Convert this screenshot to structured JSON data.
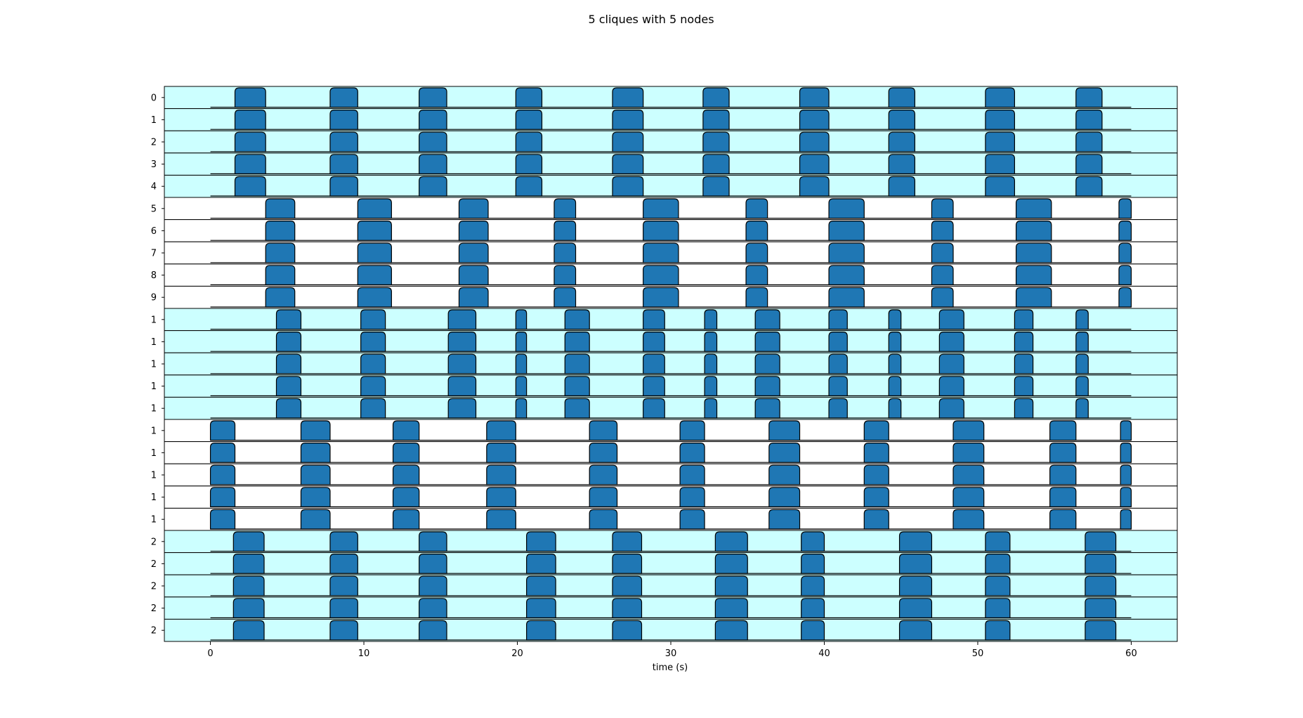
{
  "chart_data": {
    "type": "area",
    "title": "5 cliques with 5 nodes",
    "xlabel": "time (s)",
    "ylabel": "",
    "xlim": [
      -3,
      63
    ],
    "x_ticks": [
      0,
      10,
      20,
      30,
      40,
      50,
      60
    ],
    "x_tick_labels": [
      "0",
      "10",
      "20",
      "30",
      "40",
      "50",
      "60"
    ],
    "grid": false,
    "colors": {
      "fill": "#1f77b4",
      "edge": "#000000",
      "band_shaded": "#ccffff",
      "band_plain": "#ffffff"
    },
    "row_labels": [
      "0",
      "1",
      "2",
      "3",
      "4",
      "5",
      "6",
      "7",
      "8",
      "9",
      "1",
      "1",
      "1",
      "1",
      "1",
      "1",
      "1",
      "1",
      "1",
      "1",
      "2",
      "2",
      "2",
      "2",
      "2"
    ],
    "cliques": [
      {
        "shaded": true,
        "bursts": [
          [
            1.6,
            3.6
          ],
          [
            7.8,
            9.6
          ],
          [
            13.6,
            15.4
          ],
          [
            19.9,
            21.6
          ],
          [
            26.2,
            28.2
          ],
          [
            32.1,
            33.8
          ],
          [
            38.4,
            40.3
          ],
          [
            44.2,
            45.9
          ],
          [
            50.5,
            52.4
          ],
          [
            56.4,
            58.1
          ]
        ]
      },
      {
        "shaded": false,
        "bursts": [
          [
            3.6,
            5.5
          ],
          [
            9.6,
            11.8
          ],
          [
            16.2,
            18.1
          ],
          [
            22.4,
            23.8
          ],
          [
            28.2,
            30.5
          ],
          [
            34.9,
            36.3
          ],
          [
            40.3,
            42.6
          ],
          [
            47.0,
            48.4
          ],
          [
            52.5,
            54.8
          ],
          [
            59.2,
            60.0
          ]
        ]
      },
      {
        "shaded": true,
        "bursts": [
          [
            4.3,
            5.9
          ],
          [
            9.8,
            11.4
          ],
          [
            15.5,
            17.3
          ],
          [
            19.9,
            20.6
          ],
          [
            23.1,
            24.7
          ],
          [
            28.2,
            29.6
          ],
          [
            32.2,
            33.0
          ],
          [
            35.5,
            37.1
          ],
          [
            40.3,
            41.5
          ],
          [
            44.2,
            45.0
          ],
          [
            47.5,
            49.1
          ],
          [
            52.4,
            53.6
          ],
          [
            56.4,
            57.2
          ]
        ]
      },
      {
        "shaded": false,
        "bursts": [
          [
            0.0,
            1.6
          ],
          [
            5.9,
            7.8
          ],
          [
            11.9,
            13.6
          ],
          [
            18.0,
            19.9
          ],
          [
            24.7,
            26.5
          ],
          [
            30.6,
            32.2
          ],
          [
            36.4,
            38.4
          ],
          [
            42.6,
            44.2
          ],
          [
            48.4,
            50.4
          ],
          [
            54.7,
            56.4
          ],
          [
            59.3,
            60.0
          ]
        ]
      },
      {
        "shaded": true,
        "bursts": [
          [
            1.5,
            3.5
          ],
          [
            7.8,
            9.6
          ],
          [
            13.6,
            15.4
          ],
          [
            20.6,
            22.5
          ],
          [
            26.2,
            28.1
          ],
          [
            32.9,
            35.0
          ],
          [
            38.5,
            40.0
          ],
          [
            44.9,
            47.0
          ],
          [
            50.5,
            52.1
          ],
          [
            57.0,
            59.0
          ]
        ]
      }
    ]
  }
}
